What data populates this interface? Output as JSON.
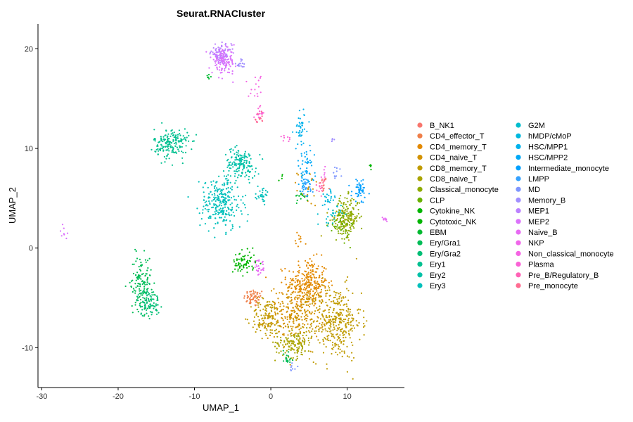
{
  "chart_data": {
    "type": "scatter",
    "title": "Seurat.RNACluster",
    "xlabel": "UMAP_1",
    "ylabel": "UMAP_2",
    "xlim": [
      -30.5,
      17.5
    ],
    "ylim": [
      -14,
      22.5
    ],
    "x_ticks": [
      -30,
      -20,
      -10,
      0,
      10
    ],
    "y_ticks": [
      -10,
      0,
      10,
      20
    ],
    "grid": false,
    "legend_position": "right",
    "series": [
      {
        "name": "B_NK1",
        "color": "#F8766D",
        "clusters": [
          [
            6.8,
            6.3,
            0.4,
            0.6,
            12
          ]
        ]
      },
      {
        "name": "CD4_effector_T",
        "color": "#EF7F49",
        "clusters": [
          [
            -2.2,
            -5.0,
            0.9,
            0.6,
            60
          ]
        ]
      },
      {
        "name": "CD4_memory_T",
        "color": "#E38900",
        "clusters": [
          [
            4.8,
            -3.5,
            1.8,
            1.6,
            260
          ],
          [
            4.0,
            0.9,
            0.5,
            0.5,
            10
          ]
        ]
      },
      {
        "name": "CD4_naive_T",
        "color": "#D39200",
        "clusters": [
          [
            3.5,
            -6.5,
            2.5,
            1.8,
            300
          ],
          [
            5.0,
            6.0,
            1.0,
            1.2,
            20
          ]
        ]
      },
      {
        "name": "CD8_memory_T",
        "color": "#C09B00",
        "clusters": [
          [
            8.5,
            -7.5,
            2.2,
            2.5,
            340
          ],
          [
            -0.5,
            -7.0,
            1.4,
            1.3,
            120
          ]
        ]
      },
      {
        "name": "CD8_naive_T",
        "color": "#A9A400",
        "clusters": [
          [
            3.0,
            -9.5,
            1.6,
            1.0,
            140
          ],
          [
            9.5,
            2.8,
            1.2,
            1.0,
            40
          ]
        ]
      },
      {
        "name": "Classical_monocyte",
        "color": "#8EAB00",
        "clusters": [
          [
            10.0,
            3.2,
            1.1,
            1.3,
            160
          ]
        ]
      },
      {
        "name": "CLP",
        "color": "#69B100",
        "clusters": [
          [
            9.0,
            2.2,
            0.9,
            1.0,
            40
          ]
        ]
      },
      {
        "name": "Cytokine_NK",
        "color": "#00B500",
        "clusters": [
          [
            1.5,
            7.2,
            0.2,
            0.3,
            4
          ]
        ]
      },
      {
        "name": "Cytotoxic_NK",
        "color": "#00B500",
        "clusters": [
          [
            -3.5,
            -1.5,
            1.0,
            0.8,
            70
          ],
          [
            13.0,
            8.2,
            0.2,
            0.3,
            5
          ]
        ]
      },
      {
        "name": "EBM",
        "color": "#00B931",
        "clusters": [
          [
            -8.0,
            17.2,
            0.3,
            0.2,
            6
          ],
          [
            4.0,
            5.3,
            0.7,
            0.4,
            15
          ]
        ]
      },
      {
        "name": "Ery/Gra1",
        "color": "#00BC56",
        "clusters": [
          [
            -17.0,
            -3.5,
            0.9,
            1.8,
            130
          ],
          [
            2.2,
            -11.0,
            0.5,
            0.6,
            20
          ]
        ]
      },
      {
        "name": "Ery/Gra2",
        "color": "#00BE75",
        "clusters": [
          [
            -16.0,
            -5.5,
            1.0,
            0.9,
            90
          ]
        ]
      },
      {
        "name": "Ery1",
        "color": "#00C090",
        "clusters": [
          [
            -13.0,
            10.5,
            1.5,
            1.0,
            180
          ]
        ]
      },
      {
        "name": "Ery2",
        "color": "#00C1A7",
        "clusters": [
          [
            -4.0,
            8.5,
            1.4,
            1.0,
            150
          ]
        ]
      },
      {
        "name": "Ery3",
        "color": "#00C0BB",
        "clusters": [
          [
            -6.5,
            4.5,
            1.8,
            1.8,
            260
          ],
          [
            -1.0,
            5.3,
            0.6,
            0.5,
            30
          ]
        ]
      },
      {
        "name": "G2M",
        "color": "#00BDCD",
        "clusters": [
          [
            8.0,
            3.3,
            0.8,
            0.7,
            25
          ]
        ]
      },
      {
        "name": "hMDP/cMoP",
        "color": "#00B8DE",
        "clusters": [
          [
            7.5,
            5.0,
            0.7,
            0.6,
            25
          ]
        ]
      },
      {
        "name": "HSC/MPP1",
        "color": "#00B2EC",
        "clusters": [
          [
            4.0,
            12.0,
            0.6,
            1.2,
            40
          ]
        ]
      },
      {
        "name": "HSC/MPP2",
        "color": "#00A9F7",
        "clusters": [
          [
            4.5,
            8.0,
            0.8,
            1.5,
            60
          ]
        ]
      },
      {
        "name": "Intermediate_monocyte",
        "color": "#00A0FF",
        "clusters": [
          [
            11.7,
            5.8,
            0.7,
            0.8,
            50
          ]
        ]
      },
      {
        "name": "LMPP",
        "color": "#35A2FF",
        "clusters": [
          [
            4.5,
            6.0,
            0.8,
            0.8,
            25
          ]
        ]
      },
      {
        "name": "MD",
        "color": "#7E96FF",
        "clusters": [
          [
            8.5,
            7.5,
            0.4,
            0.5,
            10
          ],
          [
            2.8,
            -12.0,
            0.4,
            0.3,
            8
          ]
        ]
      },
      {
        "name": "Memory_B",
        "color": "#A18FFF",
        "clusters": [
          [
            -3.8,
            18.5,
            0.5,
            0.4,
            15
          ],
          [
            8.2,
            10.8,
            0.2,
            0.3,
            4
          ]
        ]
      },
      {
        "name": "MEP1",
        "color": "#BB81FF",
        "clusters": [
          [
            -6.5,
            19.5,
            0.9,
            0.6,
            100
          ]
        ]
      },
      {
        "name": "MEP2",
        "color": "#DB72FB",
        "clusters": [
          [
            -6.2,
            18.7,
            1.0,
            0.8,
            120
          ],
          [
            -27.2,
            1.5,
            0.5,
            0.6,
            8
          ]
        ]
      },
      {
        "name": "Naive_B",
        "color": "#E76BF3",
        "clusters": [
          [
            -1.5,
            -2.0,
            0.6,
            0.5,
            25
          ],
          [
            15.0,
            2.8,
            0.3,
            0.2,
            10
          ]
        ]
      },
      {
        "name": "NKP",
        "color": "#F066EA",
        "clusters": [
          [
            7.0,
            7.5,
            0.4,
            0.3,
            6
          ]
        ]
      },
      {
        "name": "Non_classical_monocyte",
        "color": "#F564E3",
        "clusters": [
          [
            -2.0,
            16.0,
            0.6,
            1.0,
            15
          ]
        ]
      },
      {
        "name": "Plasma",
        "color": "#FA62D5",
        "clusters": [
          [
            -1.5,
            13.5,
            0.4,
            0.5,
            20
          ],
          [
            1.8,
            11.0,
            0.6,
            0.5,
            8
          ]
        ]
      },
      {
        "name": "Pre_B/Regulatory_B",
        "color": "#FF63B6",
        "clusters": [
          [
            6.5,
            6.0,
            0.4,
            0.4,
            10
          ]
        ]
      },
      {
        "name": "Pre_monocyte",
        "color": "#FF6C91",
        "clusters": [
          [
            -1.5,
            13.0,
            0.4,
            0.5,
            12
          ],
          [
            6.8,
            6.5,
            0.3,
            0.3,
            8
          ]
        ]
      }
    ]
  }
}
